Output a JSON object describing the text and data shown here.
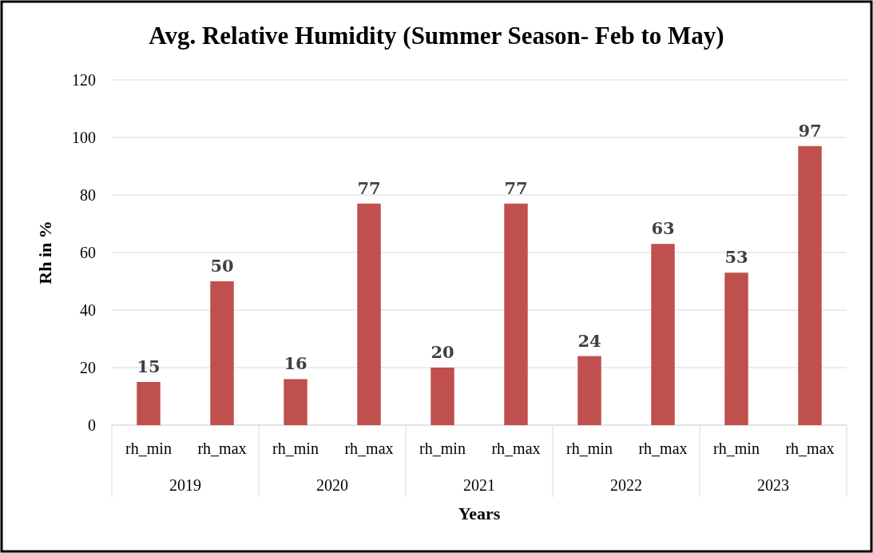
{
  "chart_data": {
    "type": "bar",
    "title": "Avg. Relative Humidity (Summer Season- Feb to May)",
    "xlabel": "Years",
    "ylabel": "Rh in %",
    "categories": [
      "rh_min",
      "rh_max",
      "rh_min",
      "rh_max",
      "rh_min",
      "rh_max",
      "rh_min",
      "rh_max",
      "rh_min",
      "rh_max"
    ],
    "annotations": [
      "2019",
      "2020",
      "2021",
      "2022",
      "2023"
    ],
    "values": [
      15,
      50,
      16,
      77,
      20,
      77,
      24,
      63,
      53,
      97
    ],
    "color": "#c0504d",
    "data_labels": true,
    "ylim": [
      0,
      120
    ],
    "yticks": [
      0,
      20,
      40,
      60,
      80,
      100,
      120
    ],
    "grid": "y"
  }
}
